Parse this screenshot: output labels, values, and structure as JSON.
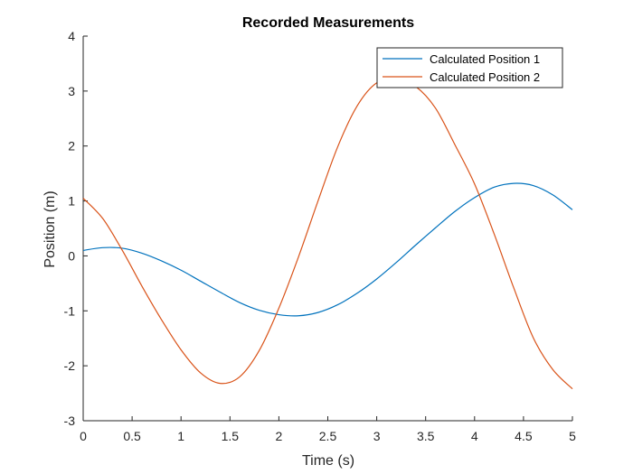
{
  "chart_data": {
    "type": "line",
    "title": "Recorded Measurements",
    "xlabel": "Time (s)",
    "ylabel": "Position (m)",
    "xlim": [
      0,
      5
    ],
    "ylim": [
      -3,
      4
    ],
    "xticks": [
      0,
      0.5,
      1,
      1.5,
      2,
      2.5,
      3,
      3.5,
      4,
      4.5,
      5
    ],
    "xtick_labels": [
      "0",
      "0.5",
      "1",
      "1.5",
      "2",
      "2.5",
      "3",
      "3.5",
      "4",
      "4.5",
      "5"
    ],
    "yticks": [
      -3,
      -2,
      -1,
      0,
      1,
      2,
      3,
      4
    ],
    "ytick_labels": [
      "-3",
      "-2",
      "-1",
      "0",
      "1",
      "2",
      "3",
      "4"
    ],
    "grid": false,
    "legend_position": "top-right",
    "series": [
      {
        "name": "Calculated Position 1",
        "color": "#0072BD",
        "x": [
          0,
          0.2,
          0.4,
          0.6,
          0.8,
          1.0,
          1.2,
          1.4,
          1.6,
          1.8,
          2.0,
          2.2,
          2.4,
          2.6,
          2.8,
          3.0,
          3.2,
          3.4,
          3.6,
          3.8,
          4.0,
          4.2,
          4.4,
          4.6,
          4.8,
          5.0
        ],
        "y": [
          0.1,
          0.15,
          0.14,
          0.05,
          -0.09,
          -0.26,
          -0.46,
          -0.66,
          -0.85,
          -0.99,
          -1.07,
          -1.09,
          -1.03,
          -0.89,
          -0.68,
          -0.42,
          -0.12,
          0.2,
          0.51,
          0.81,
          1.06,
          1.25,
          1.32,
          1.28,
          1.11,
          0.84
        ]
      },
      {
        "name": "Calculated Position 2",
        "color": "#D95319",
        "x": [
          0,
          0.2,
          0.4,
          0.6,
          0.8,
          1.0,
          1.2,
          1.4,
          1.6,
          1.8,
          2.0,
          2.2,
          2.4,
          2.6,
          2.8,
          3.0,
          3.2,
          3.4,
          3.6,
          3.8,
          4.0,
          4.2,
          4.4,
          4.6,
          4.8,
          5.0
        ],
        "y": [
          1.05,
          0.68,
          0.1,
          -0.55,
          -1.16,
          -1.71,
          -2.13,
          -2.32,
          -2.2,
          -1.72,
          -0.95,
          -0.02,
          1.0,
          1.98,
          2.73,
          3.15,
          3.21,
          3.08,
          2.69,
          2.02,
          1.31,
          0.4,
          -0.58,
          -1.49,
          -2.07,
          -2.42
        ]
      }
    ]
  }
}
